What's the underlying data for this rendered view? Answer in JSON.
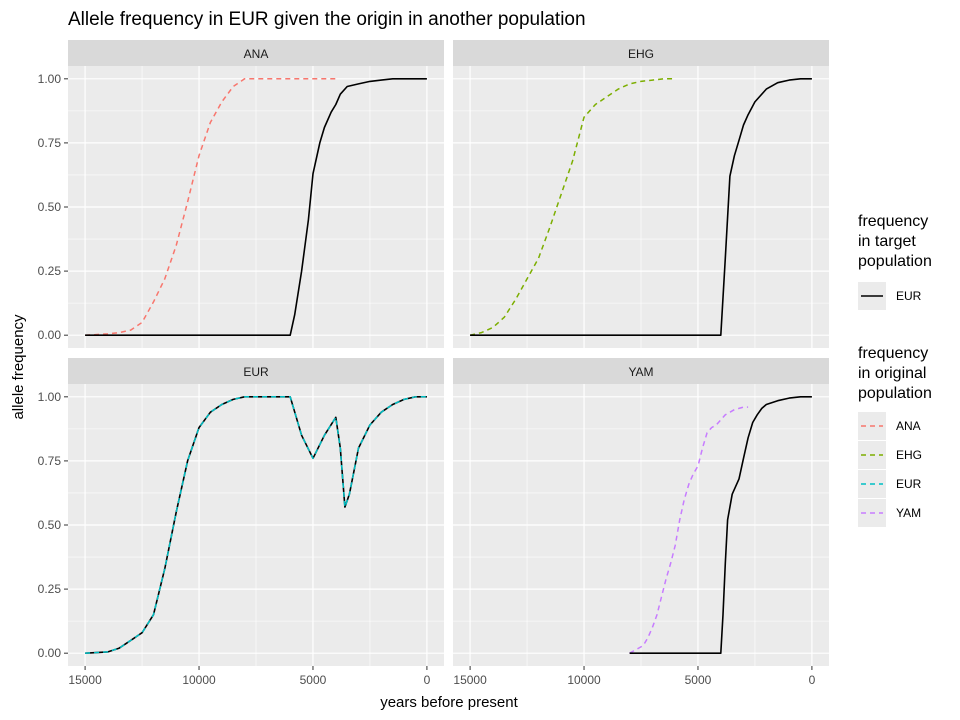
{
  "chart_data": {
    "type": "line",
    "title": "Allele frequency in EUR given the origin in another population",
    "xlabel": "years before present",
    "ylabel": "allele frequency",
    "x_reversed": true,
    "xlim": [
      15750,
      -750
    ],
    "ylim": [
      -0.05,
      1.05
    ],
    "x_ticks": [
      15000,
      10000,
      5000,
      0
    ],
    "x_tick_labels": [
      "15000",
      "10000",
      "5000",
      "0"
    ],
    "y_ticks": [
      0,
      0.25,
      0.5,
      0.75,
      1
    ],
    "y_tick_labels": [
      "0.00",
      "0.25",
      "0.50",
      "0.75",
      "1.00"
    ],
    "grid": true,
    "legend_position": "right",
    "legends": [
      {
        "title": "frequency\nin target\npopulation",
        "keys": [
          {
            "label": "EUR",
            "color": "#000000",
            "dash": "solid"
          }
        ]
      },
      {
        "title": "frequency\nin original\npopulation",
        "keys": [
          {
            "label": "ANA",
            "color": "#F8766D",
            "dash": "dashed"
          },
          {
            "label": "EHG",
            "color": "#7CAE00",
            "dash": "dashed"
          },
          {
            "label": "EUR",
            "color": "#00BFC4",
            "dash": "dashed"
          },
          {
            "label": "YAM",
            "color": "#C77CFF",
            "dash": "dashed"
          }
        ]
      }
    ],
    "panels": [
      {
        "name": "ANA",
        "series": [
          {
            "name": "ANA",
            "type": "original",
            "color": "#F8766D",
            "x": [
              15000,
              14000,
              13500,
              13000,
              12500,
              12000,
              11500,
              11000,
              10500,
              10000,
              9500,
              9000,
              8500,
              8000,
              7500,
              7000,
              6000,
              5000,
              4000
            ],
            "y": [
              0,
              0.005,
              0.01,
              0.02,
              0.05,
              0.13,
              0.22,
              0.35,
              0.52,
              0.7,
              0.83,
              0.91,
              0.97,
              1.0,
              1.0,
              1.0,
              1.0,
              1.0,
              1.0
            ]
          },
          {
            "name": "EUR",
            "type": "target",
            "color": "#000000",
            "x": [
              15000,
              6000,
              5800,
              5500,
              5200,
              5000,
              4700,
              4500,
              4200,
              4000,
              3800,
              3500,
              3000,
              2500,
              2000,
              1500,
              1000,
              500,
              0
            ],
            "y": [
              0,
              0,
              0.08,
              0.25,
              0.45,
              0.63,
              0.75,
              0.81,
              0.87,
              0.9,
              0.94,
              0.97,
              0.98,
              0.99,
              0.995,
              1.0,
              1.0,
              1.0,
              1.0
            ]
          }
        ]
      },
      {
        "name": "EHG",
        "series": [
          {
            "name": "EHG",
            "type": "original",
            "color": "#7CAE00",
            "x": [
              15000,
              14500,
              14000,
              13500,
              13000,
              12500,
              12000,
              11500,
              11000,
              10500,
              10000,
              9500,
              9000,
              8500,
              8000,
              7500,
              7000,
              6500,
              6000
            ],
            "y": [
              0,
              0.01,
              0.03,
              0.07,
              0.14,
              0.22,
              0.3,
              0.42,
              0.55,
              0.68,
              0.85,
              0.9,
              0.93,
              0.96,
              0.98,
              0.99,
              0.995,
              1.0,
              1.0
            ]
          },
          {
            "name": "EUR",
            "type": "target",
            "color": "#000000",
            "x": [
              15000,
              4000,
              3800,
              3600,
              3400,
              3200,
              3000,
              2800,
              2500,
              2000,
              1500,
              1000,
              500,
              0
            ],
            "y": [
              0,
              0,
              0.3,
              0.62,
              0.7,
              0.76,
              0.82,
              0.86,
              0.91,
              0.96,
              0.985,
              0.995,
              1.0,
              1.0
            ]
          }
        ]
      },
      {
        "name": "EUR",
        "series": [
          {
            "name": "EUR",
            "type": "target",
            "color": "#000000",
            "x": [
              15000,
              14000,
              13500,
              13000,
              12500,
              12000,
              11500,
              11000,
              10500,
              10000,
              9500,
              9000,
              8500,
              8000,
              7000,
              6000,
              5500,
              5000,
              4500,
              4000,
              3800,
              3600,
              3400,
              3000,
              2500,
              2000,
              1500,
              1000,
              500,
              0
            ],
            "y": [
              0,
              0.005,
              0.02,
              0.05,
              0.08,
              0.15,
              0.33,
              0.55,
              0.75,
              0.88,
              0.94,
              0.97,
              0.99,
              1.0,
              1.0,
              1.0,
              0.85,
              0.76,
              0.85,
              0.92,
              0.8,
              0.57,
              0.62,
              0.8,
              0.89,
              0.94,
              0.97,
              0.99,
              1.0,
              1.0
            ]
          },
          {
            "name": "EUR",
            "type": "original",
            "color": "#00BFC4",
            "x": [
              15000,
              14000,
              13500,
              13000,
              12500,
              12000,
              11500,
              11000,
              10500,
              10000,
              9500,
              9000,
              8500,
              8000,
              7000,
              6000,
              5500,
              5000,
              4500,
              4000,
              3800,
              3600,
              3400,
              3000,
              2500,
              2000,
              1500,
              1000,
              500,
              0
            ],
            "y": [
              0,
              0.005,
              0.02,
              0.05,
              0.08,
              0.15,
              0.33,
              0.55,
              0.75,
              0.88,
              0.94,
              0.97,
              0.99,
              1.0,
              1.0,
              1.0,
              0.85,
              0.76,
              0.85,
              0.92,
              0.8,
              0.57,
              0.62,
              0.8,
              0.89,
              0.94,
              0.97,
              0.99,
              1.0,
              1.0
            ]
          }
        ]
      },
      {
        "name": "YAM",
        "series": [
          {
            "name": "YAM",
            "type": "original",
            "color": "#C77CFF",
            "x": [
              8000,
              7800,
              7600,
              7400,
              7200,
              7000,
              6800,
              6600,
              6400,
              6200,
              6000,
              5800,
              5600,
              5400,
              5200,
              5000,
              4800,
              4600,
              4400,
              4200,
              4000,
              3800,
              3600,
              3400,
              3200,
              3000,
              2800
            ],
            "y": [
              0,
              0.01,
              0.02,
              0.03,
              0.06,
              0.1,
              0.15,
              0.22,
              0.29,
              0.35,
              0.42,
              0.52,
              0.6,
              0.66,
              0.7,
              0.73,
              0.8,
              0.86,
              0.88,
              0.89,
              0.91,
              0.93,
              0.94,
              0.95,
              0.955,
              0.96,
              0.96
            ]
          },
          {
            "name": "EUR",
            "type": "target",
            "color": "#000000",
            "x": [
              8000,
              4000,
              3900,
              3800,
              3700,
              3500,
              3200,
              3000,
              2800,
              2600,
              2400,
              2200,
              2000,
              1500,
              1000,
              500,
              0
            ],
            "y": [
              0,
              0,
              0.15,
              0.35,
              0.52,
              0.62,
              0.68,
              0.76,
              0.84,
              0.9,
              0.93,
              0.955,
              0.97,
              0.985,
              0.995,
              1.0,
              1.0
            ]
          }
        ]
      }
    ]
  }
}
